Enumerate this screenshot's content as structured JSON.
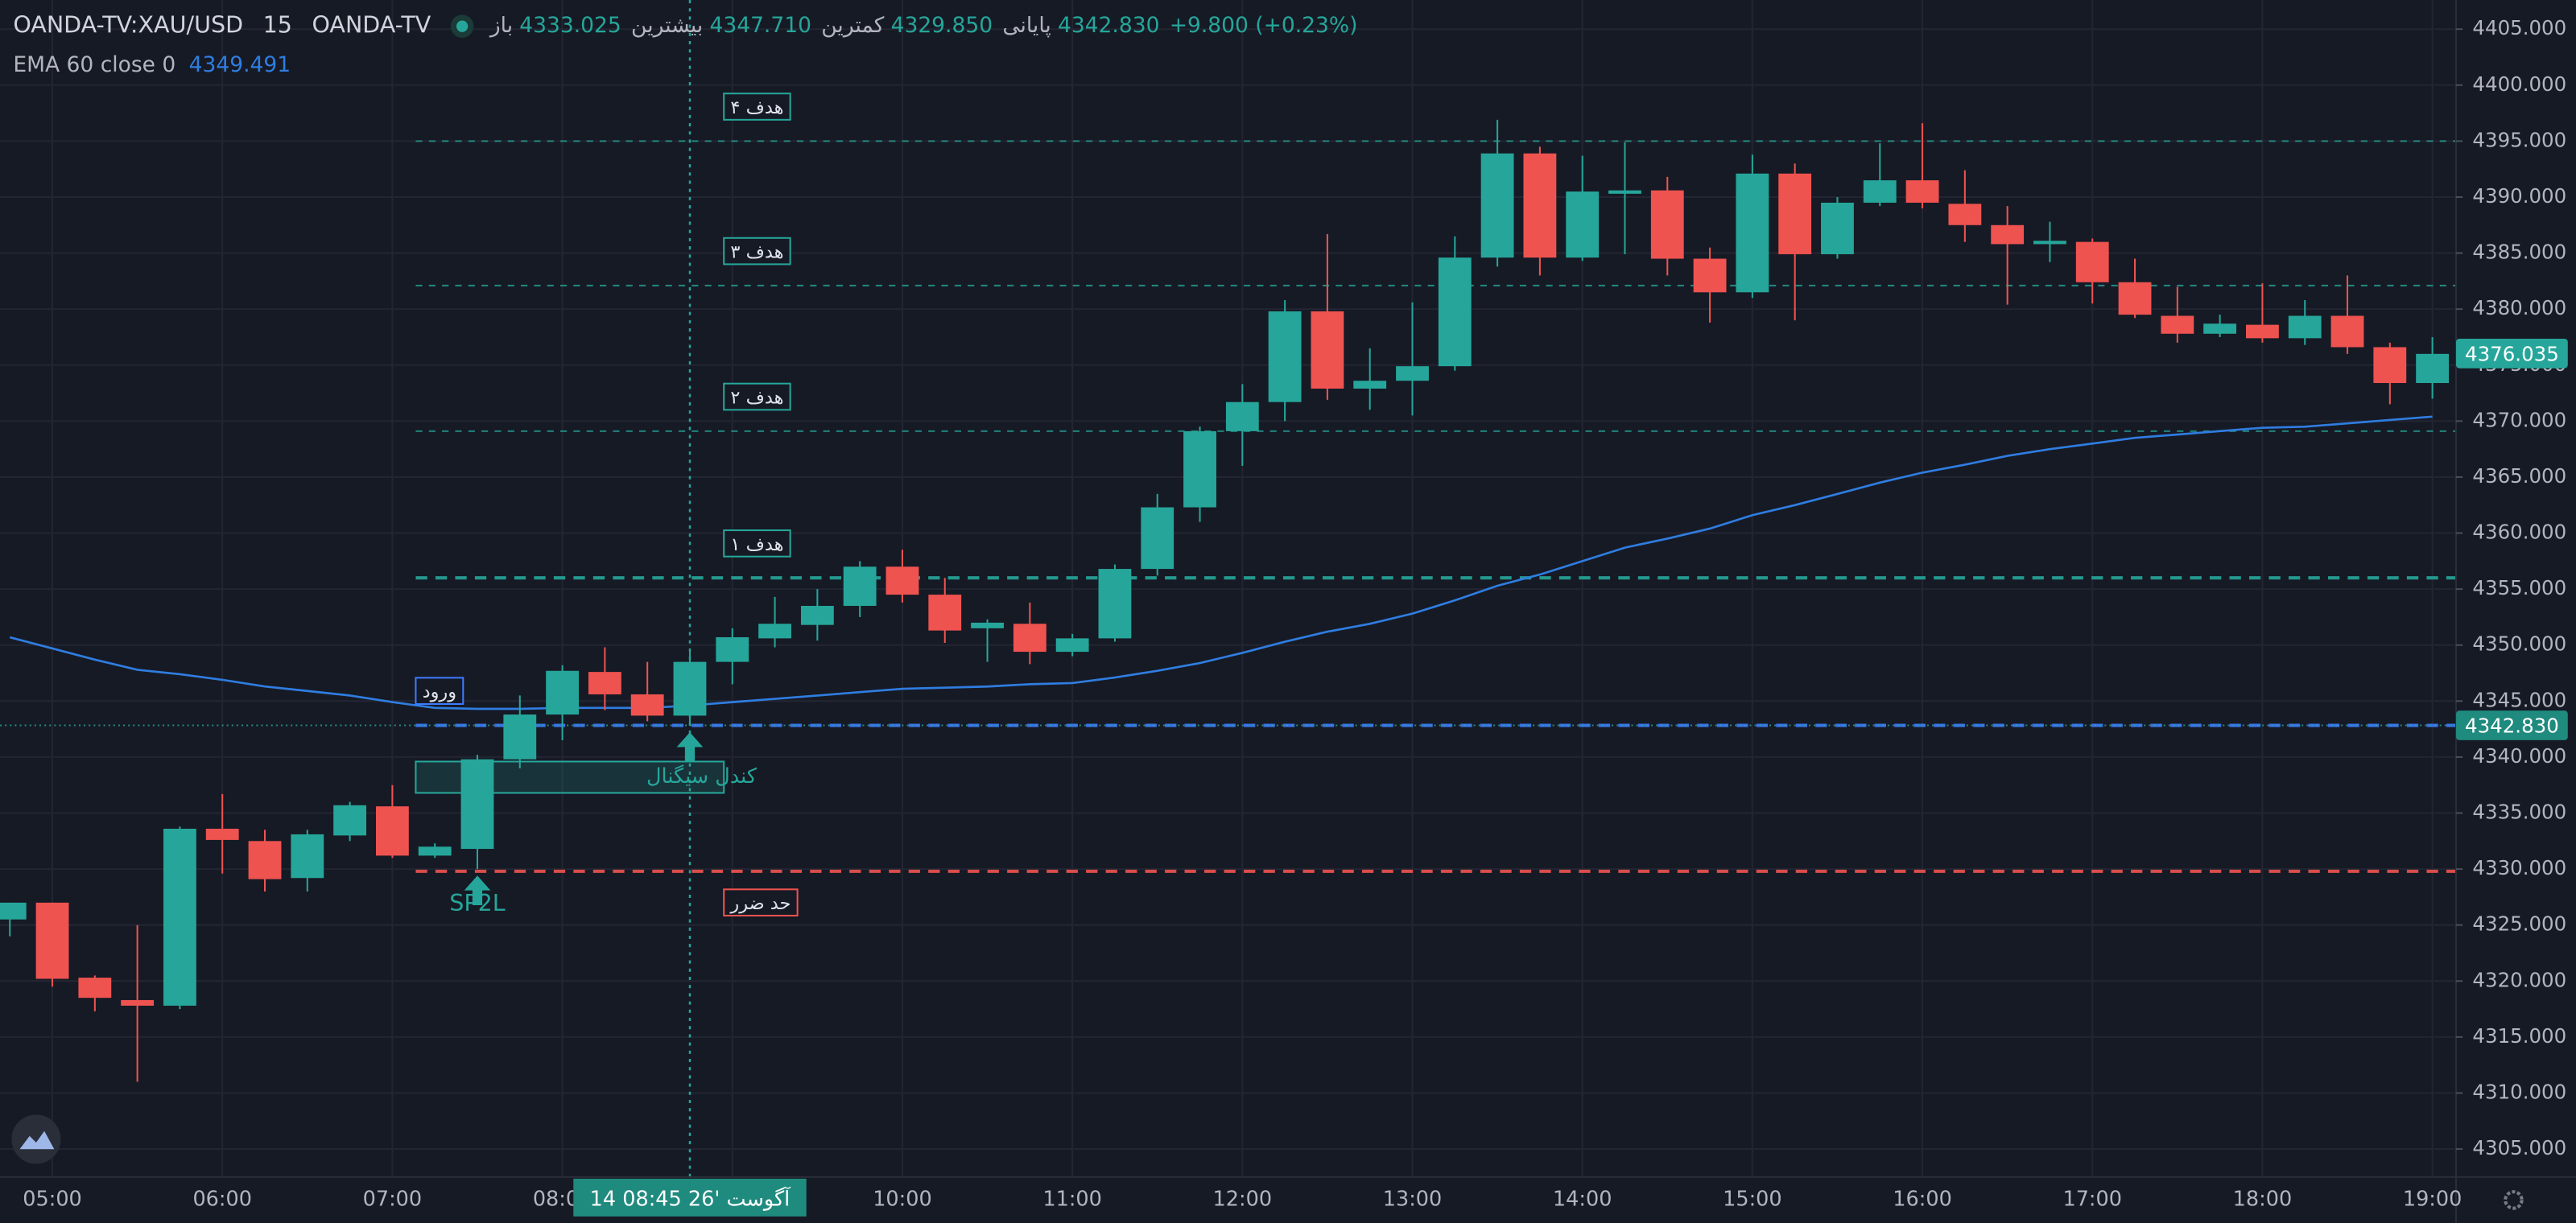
{
  "header": {
    "symbol": "OANDA-TV:XAU/USD",
    "interval": "15",
    "source": "OANDA-TV",
    "ohlc": [
      {
        "name": "باز",
        "value": "4333.025"
      },
      {
        "name": "بیشترین",
        "value": "4347.710"
      },
      {
        "name": "کمترین",
        "value": "4329.850"
      },
      {
        "name": "پایانی",
        "value": "4342.830"
      }
    ],
    "change": "+9.800 (+0.23%)",
    "indicator": "EMA 60 close 0",
    "indicator_value": "4349.491"
  },
  "chart_data": {
    "type": "candlestick",
    "categories": [
      null,
      "05:00",
      null,
      null,
      null,
      "06:00",
      null,
      null,
      null,
      "07:00",
      null,
      null,
      null,
      "08:00",
      null,
      null,
      null,
      "09:00",
      null,
      null,
      null,
      "10:00",
      null,
      null,
      null,
      "11:00",
      null,
      null,
      null,
      "12:00",
      null,
      null,
      null,
      "13:00",
      null,
      null,
      null,
      "14:00",
      null,
      null,
      null,
      "15:00",
      null,
      null,
      null,
      "16:00",
      null,
      null,
      null,
      "17:00",
      null,
      null,
      null,
      "18:00",
      null,
      null,
      null,
      "19:00"
    ],
    "open": [
      4325.5,
      4327,
      4320.3,
      4318.3,
      4317.8,
      4333.6,
      4332.5,
      4329.2,
      4333,
      4335.6,
      4331.2,
      4331.8,
      4339.8,
      4343.8,
      4347.6,
      4345.6,
      4343.7,
      4348.5,
      4350.6,
      4351.8,
      4353.5,
      4357,
      4354.5,
      4351.5,
      4351.9,
      4349.4,
      4350.6,
      4356.8,
      4362.3,
      4369.1,
      4371.7,
      4379.8,
      4372.9,
      4373.6,
      4374.9,
      4384.6,
      4393.9,
      4384.6,
      4390.3,
      4390.6,
      4384.5,
      4381.5,
      4392.1,
      4384.9,
      4389.5,
      4391.5,
      4389.4,
      4387.5,
      4385.8,
      4386,
      4382.4,
      4379.4,
      4377.8,
      4378.6,
      4377.4,
      4379.4,
      4376.6,
      4373.4
    ],
    "high": [
      4327,
      4327,
      4320.5,
      4325,
      4333.8,
      4336.7,
      4333.5,
      4333.5,
      4336,
      4337.5,
      4332.3,
      4340.2,
      4345.5,
      4348.2,
      4349.8,
      4348.5,
      4349.5,
      4351.5,
      4354.3,
      4355,
      4357.5,
      4358.5,
      4356,
      4352.3,
      4353.8,
      4351,
      4357.2,
      4363.5,
      4369.5,
      4373.3,
      4380.8,
      4386.7,
      4376.5,
      4380.6,
      4386.5,
      4396.9,
      4394.5,
      4393.7,
      4394.9,
      4391.8,
      4385.5,
      4393.8,
      4393,
      4390,
      4394.8,
      4396.6,
      4392.4,
      4389.2,
      4387.8,
      4386.3,
      4384.5,
      4382,
      4379.5,
      4382.3,
      4380.8,
      4383,
      4377,
      4377.5
    ],
    "low": [
      4324,
      4319.5,
      4317.3,
      4311,
      4317.5,
      4329.6,
      4328,
      4328,
      4332.5,
      4331,
      4331,
      4330,
      4339,
      4341.5,
      4344.2,
      4343.2,
      4342.8,
      4346.5,
      4349.8,
      4350.4,
      4352.5,
      4353.8,
      4350.2,
      4348.5,
      4348.3,
      4349,
      4350.3,
      4356.2,
      4361,
      4366,
      4370,
      4371.9,
      4371,
      4370.5,
      4374.5,
      4383.8,
      4383,
      4384.3,
      4384.9,
      4383,
      4378.8,
      4381,
      4379,
      4384.5,
      4389.2,
      4389,
      4386,
      4380.4,
      4384.2,
      4380.5,
      4379.2,
      4377,
      4377.5,
      4377,
      4376.8,
      4376,
      4371.5,
      4372
    ],
    "close": [
      4327,
      4320.2,
      4318.5,
      4317.8,
      4333.6,
      4332.6,
      4329.1,
      4333.1,
      4335.7,
      4331.2,
      4332,
      4339.8,
      4343.8,
      4347.7,
      4345.6,
      4343.7,
      4348.5,
      4350.7,
      4351.9,
      4353.5,
      4357,
      4354.5,
      4351.3,
      4352,
      4349.4,
      4350.6,
      4356.8,
      4362.3,
      4369.1,
      4371.7,
      4379.8,
      4372.9,
      4373.6,
      4374.9,
      4384.6,
      4393.9,
      4384.6,
      4390.5,
      4390.6,
      4384.5,
      4381.5,
      4392.1,
      4384.9,
      4389.5,
      4391.5,
      4389.5,
      4387.5,
      4385.8,
      4386.1,
      4382.4,
      4379.5,
      4377.8,
      4378.7,
      4377.4,
      4379.4,
      4376.6,
      4373.4,
      4376.0
    ],
    "up_color": "#26a69a",
    "down_color": "#ef5350",
    "ema": {
      "color": "#2f7de1",
      "values": [
        4350.7,
        4349.7,
        4348.7,
        4347.8,
        4347.4,
        4346.9,
        4346.3,
        4345.9,
        4345.5,
        4344.9,
        4344.4,
        4344.3,
        4344.3,
        4344.4,
        4344.4,
        4344.4,
        4344.6,
        4344.9,
        4345.2,
        4345.5,
        4345.8,
        4346.1,
        4346.2,
        4346.3,
        4346.5,
        4346.6,
        4347.1,
        4347.7,
        4348.4,
        4349.3,
        4350.3,
        4351.2,
        4351.9,
        4352.8,
        4354.0,
        4355.3,
        4356.3,
        4357.5,
        4358.7,
        4359.5,
        4360.4,
        4361.6,
        4362.5,
        4363.5,
        4364.5,
        4365.4,
        4366.1,
        4366.9,
        4367.5,
        4368.0,
        4368.5,
        4368.8,
        4369.1,
        4369.4,
        4369.5,
        4369.8,
        4370.1,
        4370.4
      ]
    },
    "ylim": [
      4302.5,
      4407.6
    ],
    "yticks": [
      {
        "value": 4305,
        "label": "4305.000"
      },
      {
        "value": 4310,
        "label": "4310.000"
      },
      {
        "value": 4315,
        "label": "4315.000"
      },
      {
        "value": 4320,
        "label": "4320.000"
      },
      {
        "value": 4325,
        "label": "4325.000"
      },
      {
        "value": 4330,
        "label": "4330.000"
      },
      {
        "value": 4335,
        "label": "4335.000"
      },
      {
        "value": 4340,
        "label": "4340.000"
      },
      {
        "value": 4345,
        "label": "4345.000"
      },
      {
        "value": 4350,
        "label": "4350.000"
      },
      {
        "value": 4355,
        "label": "4355.000"
      },
      {
        "value": 4360,
        "label": "4360.000"
      },
      {
        "value": 4365,
        "label": "4365.000"
      },
      {
        "value": 4370,
        "label": "4370.000"
      },
      {
        "value": 4375,
        "label": "4375.000"
      },
      {
        "value": 4380,
        "label": "4380.000"
      },
      {
        "value": 4385,
        "label": "4385.000"
      },
      {
        "value": 4390,
        "label": "4390.000"
      },
      {
        "value": 4395,
        "label": "4395.000"
      },
      {
        "value": 4400,
        "label": "4400.000"
      },
      {
        "value": 4405,
        "label": "4405.000"
      }
    ],
    "grid": true,
    "levels": [
      {
        "label": "هدف ۴",
        "value": 4395.0,
        "color": "#26a69a"
      },
      {
        "label": "هدف ۳",
        "value": 4382.1,
        "color": "#26a69a"
      },
      {
        "label": "هدف ۲",
        "value": 4369.1,
        "color": "#26a69a"
      },
      {
        "label": "هدف ۱",
        "value": 4356.0,
        "color": "#26a69a"
      },
      {
        "label": "ورود",
        "value": 4342.83,
        "color": "#3d7bff"
      },
      {
        "label": "حد ضرر",
        "value": 4329.8,
        "color": "#ef5350"
      }
    ],
    "signal_box": {
      "label": "کندل سیگنال",
      "top": 4339.6,
      "bottom": 4336.8
    },
    "signal_label": "SP2L",
    "price_tags": [
      4376.035,
      {
        "value": 4342.83,
        "label": "4342.830"
      }
    ],
    "crosshair_label": "14 آگوست '26 08:45"
  }
}
